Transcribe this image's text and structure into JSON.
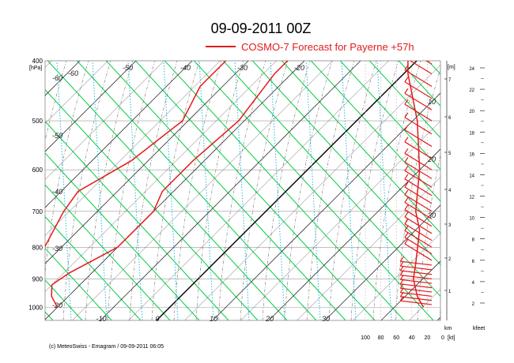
{
  "title": "09-09-2011  00Z",
  "legend": {
    "label": "COSMO-7 Forecast for Payerne   +57h",
    "color": "#e31a1c"
  },
  "footer": "(c) MeteoSwiss - Emagram  /  09-09-2011  06:05",
  "chart_data": {
    "type": "line",
    "subtype": "emagram",
    "y_axis": {
      "label": "[hPa]",
      "ticks": [
        400,
        500,
        600,
        700,
        800,
        900,
        1000
      ],
      "range": [
        400,
        1050
      ],
      "scale": "log"
    },
    "x_axis": {
      "label": "",
      "ticks": [
        -10,
        0,
        10,
        20,
        30
      ]
    },
    "isotherm_labels": [
      -60,
      -50,
      -40,
      -30,
      -20
    ],
    "height_axis_m": {
      "label": "[m]",
      "ticks": [
        1,
        2,
        3,
        4,
        5,
        6,
        7
      ]
    },
    "wind_axis": {
      "label": "[kt]",
      "ticks": [
        100,
        80,
        60,
        40,
        20,
        0
      ]
    },
    "km_label": "km",
    "kfeet_axis": {
      "label": "kfeet",
      "ticks": [
        2,
        4,
        6,
        8,
        10,
        12,
        14,
        16,
        18,
        20,
        22,
        24
      ]
    },
    "mixing_ratio_labels": [
      10,
      20,
      30
    ],
    "series": [
      {
        "name": "Temperature",
        "color": "#e31a1c",
        "points": [
          [
            -20,
            1000
          ],
          [
            -23,
            960
          ],
          [
            -25,
            920
          ],
          [
            -24,
            880
          ],
          [
            -20,
            800
          ],
          [
            -20,
            700
          ],
          [
            -22,
            650
          ],
          [
            -22,
            580
          ],
          [
            -21,
            500
          ],
          [
            -23,
            420
          ],
          [
            -23,
            400
          ]
        ]
      },
      {
        "name": "Dew point",
        "color": "#e31a1c",
        "points": [
          [
            -30,
            1000
          ],
          [
            -32,
            960
          ],
          [
            -34,
            910
          ],
          [
            -35,
            870
          ],
          [
            -33,
            800
          ],
          [
            -36,
            700
          ],
          [
            -37,
            650
          ],
          [
            -33,
            580
          ],
          [
            -31,
            500
          ],
          [
            -34,
            440
          ],
          [
            -34,
            400
          ]
        ]
      },
      {
        "name": "Wind speed",
        "color": "#e31a1c",
        "points": [
          [
            25,
            1000
          ],
          [
            33,
            960
          ],
          [
            38,
            900
          ],
          [
            35,
            850
          ],
          [
            30,
            750
          ],
          [
            35,
            700
          ],
          [
            30,
            600
          ],
          [
            33,
            500
          ],
          [
            45,
            420
          ],
          [
            45,
            400
          ]
        ]
      }
    ]
  }
}
